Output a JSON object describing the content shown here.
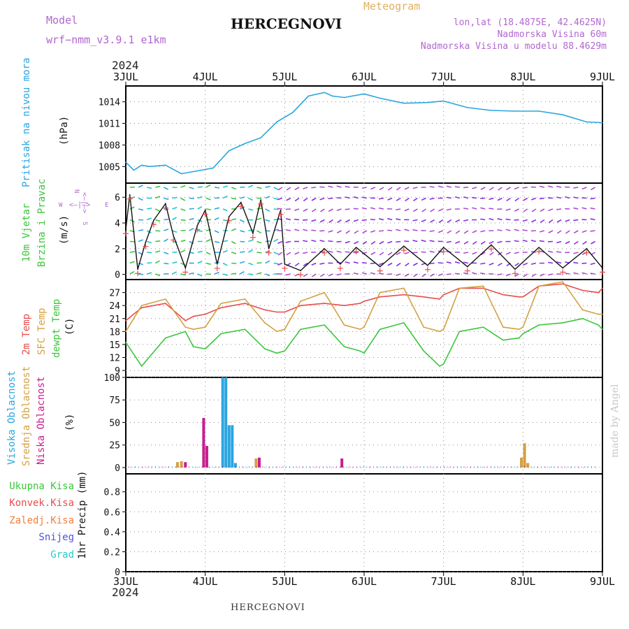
{
  "header": {
    "model_label": "Model",
    "model_name": "wrf−nmm_v3.9.1  e1km",
    "station": "HERCEGNOVI",
    "meteogram_label": "Meteogram",
    "lonlat": "lon,lat (18.4875E, 42.4625N)",
    "elevation": "Nadmorska Visina 60m",
    "model_elevation": "Nadmorska Visina u modelu 88.4629m"
  },
  "footer": {
    "station": "HERCEGNOVI"
  },
  "watermark": "made by Angel",
  "time_axis": {
    "year": "2024",
    "ticks": [
      "3JUL",
      "4JUL",
      "5JUL",
      "6JUL",
      "7JUL",
      "8JUL",
      "9JUL"
    ]
  },
  "colors": {
    "pressure": "#2aa5e0",
    "temp_2m": "#e84c4c",
    "temp_sfc": "#d4a040",
    "dewpoint": "#3bc63b",
    "cloud_high": "#2aa5e0",
    "cloud_mid": "#d4a040",
    "cloud_low": "#c81e8c",
    "precip_total": "#3bc63b",
    "precip_conv": "#e84c4c",
    "precip_frz": "#f07f3c",
    "snow": "#5050e0",
    "graupel": "#2ac8c8",
    "wind_label": "#3bc63b",
    "compass": "#b266d0",
    "wind_line": "#111111",
    "gust": "#e84c4c"
  },
  "panel_labels": {
    "pressure": {
      "title": "Pritisak na nivou mora",
      "unit": "(hPa)"
    },
    "wind": {
      "title1": "10m Vjetar",
      "title2": "Brzina i Pravac",
      "unit": "(m/s)"
    },
    "compass": {
      "n": "N",
      "s": "S",
      "w": "W",
      "e": "E",
      "arrow_text": "<—|—>",
      "arrow_text_vertical": "<—|—>"
    },
    "temp": {
      "l1": "2m Temp",
      "l2": "SFC Temp",
      "l3": "dewpt Temp",
      "unit": "(C)"
    },
    "cloud": {
      "l1": "Visoka Oblacnost",
      "l2": "Srednja Oblacnost",
      "l3": "Niska Oblacnost",
      "unit": "(%)"
    },
    "precip": {
      "l1": "Ukupna Kisa",
      "l2": "Konvek.Kisa",
      "l3": "Zaledj.Kisa",
      "l4": "Snijeg",
      "l5": "Grad",
      "unit": "1hr Precip (mm)"
    }
  },
  "chart_data": [
    {
      "type": "line",
      "panel": "pressure",
      "ylabel": "(hPa)",
      "yticks": [
        "1005",
        "1008",
        "1011",
        "1014"
      ],
      "ylim": [
        1002.7,
        1016.2
      ],
      "grid": true,
      "x_days": [
        0,
        0.1,
        0.2,
        0.3,
        0.5,
        0.7,
        0.9,
        1.1,
        1.3,
        1.5,
        1.7,
        1.9,
        2.1,
        2.3,
        2.5,
        2.6,
        2.75,
        3.0,
        3.2,
        3.5,
        3.8,
        4.0,
        4.3,
        4.6,
        4.9,
        5.2,
        5.5,
        5.8,
        6.0
      ],
      "series": [
        {
          "name": "Pritisak na nivou mora",
          "values": [
            1005.6,
            1004.5,
            1005.2,
            1005.0,
            1005.2,
            1004.0,
            1004.4,
            1004.8,
            1007.2,
            1008.2,
            1009.0,
            1011.2,
            1012.5,
            1014.8,
            1015.3,
            1014.8,
            1014.6,
            1015.1,
            1014.5,
            1013.8,
            1013.9,
            1014.1,
            1013.2,
            1012.8,
            1012.7,
            1012.7,
            1012.2,
            1011.2,
            1011.1
          ]
        }
      ]
    },
    {
      "type": "line",
      "panel": "wind",
      "ylabel": "(m/s)",
      "yticks": [
        "0",
        "2",
        "4",
        "6"
      ],
      "ylim": [
        -0.4,
        7.1
      ],
      "grid": true,
      "x_days": [
        0,
        0.05,
        0.15,
        0.25,
        0.35,
        0.5,
        0.6,
        0.75,
        0.9,
        1.0,
        1.15,
        1.3,
        1.45,
        1.6,
        1.7,
        1.8,
        1.95,
        2.0,
        2.2,
        2.5,
        2.7,
        2.9,
        3.2,
        3.5,
        3.8,
        4.0,
        4.3,
        4.6,
        4.9,
        5.2,
        5.5,
        5.8,
        6.0
      ],
      "series": [
        {
          "name": "10m Vjetar",
          "values": [
            3.5,
            6.2,
            0.4,
            2.5,
            4.2,
            5.5,
            3.0,
            0.5,
            3.8,
            5.0,
            0.8,
            4.5,
            5.6,
            3.2,
            5.8,
            2.0,
            5.0,
            0.8,
            0.3,
            2.0,
            0.8,
            2.1,
            0.6,
            2.2,
            0.7,
            2.1,
            0.6,
            2.3,
            0.4,
            2.1,
            0.5,
            2.0,
            0.5
          ]
        }
      ]
    },
    {
      "type": "line",
      "panel": "temp",
      "ylabel": "(C)",
      "yticks": [
        "9",
        "12",
        "15",
        "18",
        "21",
        "24",
        "27"
      ],
      "ylim": [
        7.4,
        30.0
      ],
      "grid": true,
      "x_days": [
        0,
        0.2,
        0.5,
        0.75,
        0.85,
        1.0,
        1.2,
        1.5,
        1.75,
        1.9,
        2.0,
        2.2,
        2.5,
        2.75,
        2.95,
        3.0,
        3.2,
        3.5,
        3.75,
        3.95,
        4.0,
        4.2,
        4.5,
        4.75,
        4.95,
        5.0,
        5.2,
        5.5,
        5.75,
        5.95,
        6.0
      ],
      "series": [
        {
          "name": "2m Temp",
          "values": [
            20.5,
            23.5,
            24.5,
            20.5,
            21.5,
            22.0,
            23.5,
            24.5,
            23.0,
            22.5,
            22.5,
            24.0,
            24.5,
            24.0,
            24.5,
            25.0,
            26.0,
            26.5,
            26.0,
            25.5,
            26.5,
            28.0,
            28.0,
            26.5,
            26.0,
            26.0,
            28.5,
            29.0,
            27.5,
            27.0,
            28.0
          ]
        },
        {
          "name": "SFC Temp",
          "values": [
            18.0,
            24.0,
            25.5,
            19.0,
            18.5,
            19.0,
            24.5,
            25.5,
            20.0,
            18.0,
            18.5,
            25.0,
            27.0,
            19.5,
            18.5,
            19.0,
            27.0,
            28.0,
            19.0,
            18.0,
            18.5,
            28.0,
            28.5,
            19.0,
            18.5,
            19.0,
            28.5,
            29.5,
            23.0,
            22.0,
            22.0
          ]
        },
        {
          "name": "dewpt Temp",
          "values": [
            15.5,
            10.0,
            16.5,
            18.0,
            14.5,
            14.0,
            17.5,
            18.5,
            14.0,
            13.0,
            13.5,
            18.5,
            19.5,
            14.5,
            13.5,
            13.0,
            18.5,
            20.0,
            13.5,
            10.0,
            10.5,
            18.0,
            19.0,
            16.0,
            16.5,
            17.5,
            19.5,
            20.0,
            21.0,
            19.5,
            18.5
          ]
        }
      ]
    },
    {
      "type": "bar",
      "panel": "cloud",
      "ylabel": "(%)",
      "yticks": [
        "0",
        "25",
        "50",
        "75",
        "100"
      ],
      "ylim": [
        -7,
        100
      ],
      "grid": true,
      "bars": [
        {
          "series": "Visoka Oblacnost",
          "x": 1.22,
          "value": 100
        },
        {
          "series": "Visoka Oblacnost",
          "x": 1.26,
          "value": 100
        },
        {
          "series": "Visoka Oblacnost",
          "x": 1.3,
          "value": 47
        },
        {
          "series": "Visoka Oblacnost",
          "x": 1.34,
          "value": 47
        },
        {
          "series": "Visoka Oblacnost",
          "x": 1.38,
          "value": 5
        },
        {
          "series": "Niska Oblacnost",
          "x": 0.98,
          "value": 55
        },
        {
          "series": "Niska Oblacnost",
          "x": 1.02,
          "value": 24
        },
        {
          "series": "Niska Oblacnost",
          "x": 1.68,
          "value": 11
        },
        {
          "series": "Niska Oblacnost",
          "x": 2.72,
          "value": 10
        },
        {
          "series": "Niska Oblacnost",
          "x": 0.75,
          "value": 6
        },
        {
          "series": "Srednja Oblacnost",
          "x": 0.65,
          "value": 6
        },
        {
          "series": "Srednja Oblacnost",
          "x": 0.7,
          "value": 7
        },
        {
          "series": "Srednja Oblacnost",
          "x": 1.64,
          "value": 10
        },
        {
          "series": "Srednja Oblacnost",
          "x": 4.98,
          "value": 11
        },
        {
          "series": "Srednja Oblacnost",
          "x": 5.02,
          "value": 27
        },
        {
          "series": "Srednja Oblacnost",
          "x": 5.06,
          "value": 5
        }
      ]
    },
    {
      "type": "bar",
      "panel": "precip",
      "ylabel": "1hr Precip (mm)",
      "yticks": [
        "0",
        "0.2",
        "0.4",
        "0.6",
        "0.8"
      ],
      "ylim": [
        0,
        0.98
      ],
      "grid": true,
      "bars": []
    }
  ]
}
